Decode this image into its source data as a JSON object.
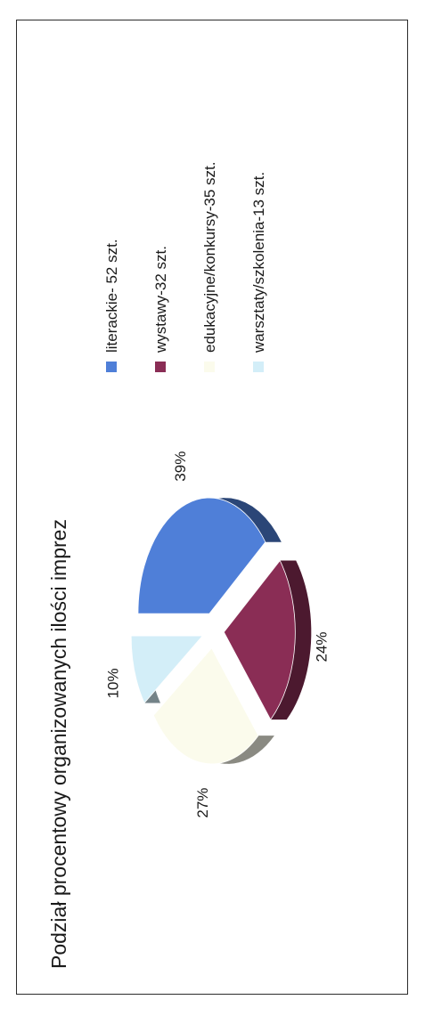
{
  "chart_data": {
    "type": "pie",
    "title": "Podział procentowy organizowanych ilości imprez",
    "categories": [
      "literackie",
      "wystawy",
      "edukacyjne/konkursy",
      "warsztaty/szkolenia"
    ],
    "values": [
      52,
      32,
      35,
      13
    ],
    "percent_labels": [
      "39%",
      "24%",
      "27%",
      "10%"
    ],
    "legend": [
      {
        "label": "literackie- 52 szt.",
        "color": "#4f7fd8"
      },
      {
        "label": "wystawy-32  szt.",
        "color": "#8a2d55"
      },
      {
        "label": "edukacyjne/konkursy-35  szt.",
        "color": "#fbfbec"
      },
      {
        "label": "warsztaty/szkolenia-13  szt.",
        "color": "#d3eef8"
      }
    ],
    "legend_position": "right",
    "exploded": true,
    "three_d": true
  }
}
